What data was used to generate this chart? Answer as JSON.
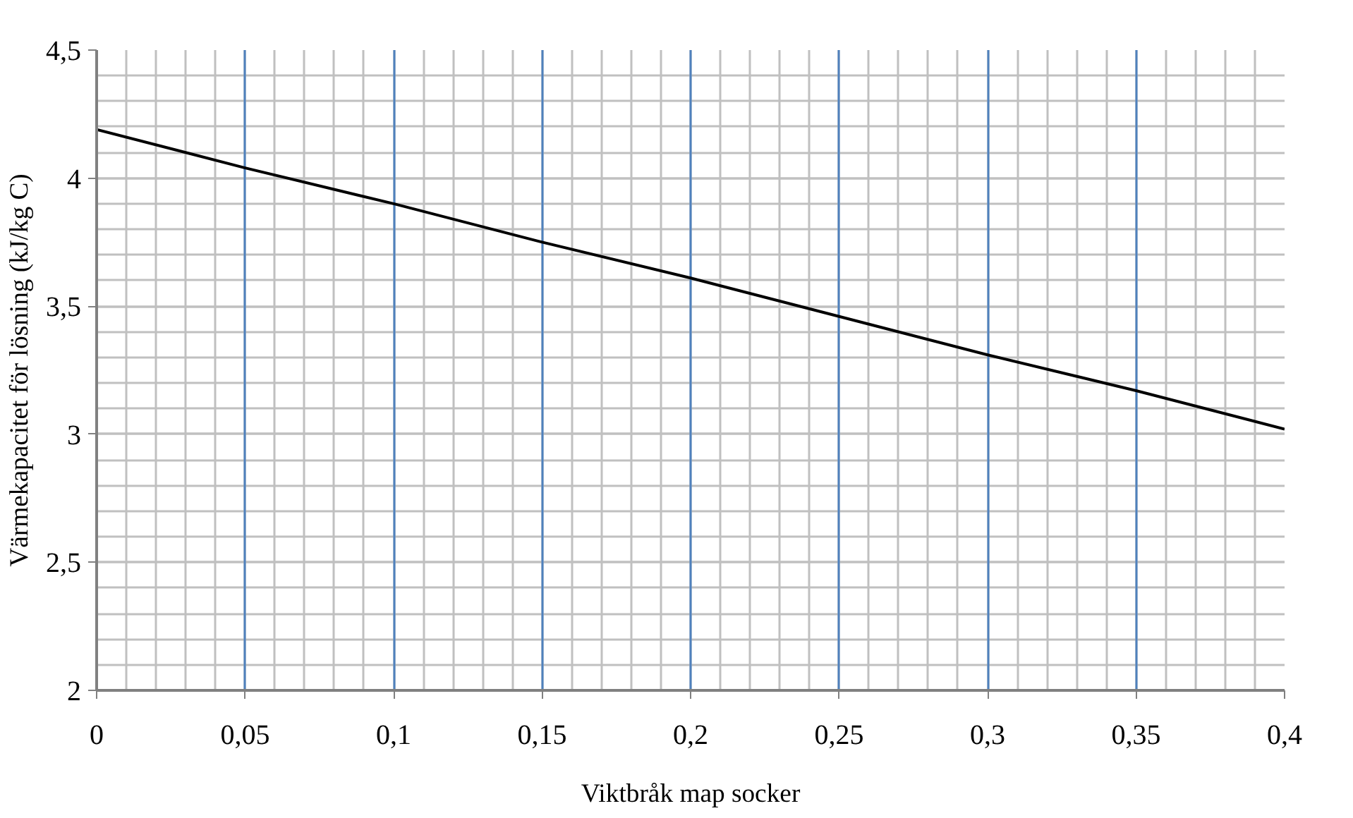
{
  "chart_data": {
    "type": "line",
    "xlabel": "Viktbråk map socker",
    "ylabel": "Värmekapacitet för lösning (kJ/kg C)",
    "x": [
      0,
      0.05,
      0.1,
      0.15,
      0.2,
      0.25,
      0.3,
      0.35,
      0.4
    ],
    "series": [
      {
        "color": "#000000",
        "values": [
          4.19,
          4.04,
          3.9,
          3.75,
          3.61,
          3.46,
          3.31,
          3.17,
          3.02
        ]
      }
    ],
    "xlim": [
      0,
      0.4
    ],
    "ylim": [
      2,
      4.5
    ],
    "xticks": [
      0,
      {
        "value": 0.05,
        "label": "0,05"
      },
      {
        "value": 0.1,
        "label": "0,1"
      },
      {
        "value": 0.15,
        "label": "0,15"
      },
      {
        "value": 0.2,
        "label": "0,2"
      },
      {
        "value": 0.25,
        "label": "0,25"
      },
      {
        "value": 0.3,
        "label": "0,3"
      },
      {
        "value": 0.35,
        "label": "0,35"
      },
      {
        "value": 0.4,
        "label": "0,4"
      }
    ],
    "yticks": [
      2,
      {
        "value": 2.5,
        "label": "2,5"
      },
      3,
      {
        "value": 3.5,
        "label": "3,5"
      },
      4,
      {
        "value": 4.5,
        "label": "4,5"
      }
    ],
    "grid": true,
    "marker": "none",
    "line_style": "solid"
  }
}
